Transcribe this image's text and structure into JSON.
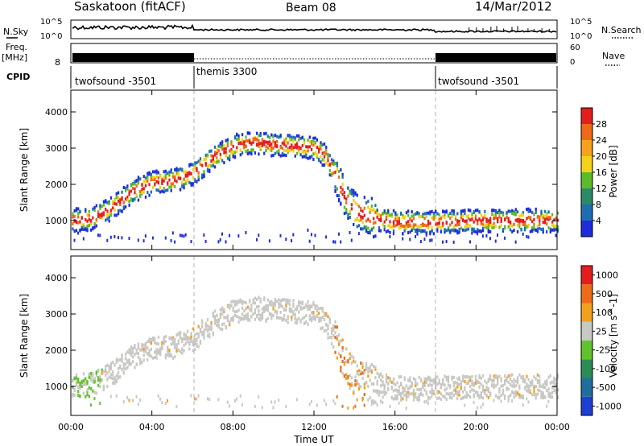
{
  "header": {
    "station": "Saskatoon (fitACF)",
    "beam": "Beam 08",
    "date": "14/Mar/2012"
  },
  "strip_labels": {
    "nsky": "N.Sky",
    "nsearch": "N.Search",
    "freq": "Freq.",
    "freq_unit": "[MHz]",
    "nave": "Nave",
    "cpid": "CPID",
    "nsky_top": "10^5",
    "nsky_bottom": "10^0",
    "nsearch_top": "10^5",
    "nsearch_bottom": "10^0",
    "freq_value": "8",
    "nave_top": "60",
    "nave_bottom": "0"
  },
  "cpid_segments": [
    {
      "label": "twofsound -3501",
      "start_hour": 0,
      "end_hour": 6
    },
    {
      "label": "themis 3300",
      "start_hour": 6,
      "end_hour": 18
    },
    {
      "label": "twofsound -3501",
      "start_hour": 18,
      "end_hour": 24
    }
  ],
  "colors": {
    "power_scale": [
      "#1f2ddb",
      "#1f6fb0",
      "#2e8a66",
      "#5dbb2a",
      "#f2d21a",
      "#f5a21c",
      "#ee6a1a",
      "#e21e1e"
    ],
    "velocity_scale": [
      "#1f3fd1",
      "#1f6f9e",
      "#2b8c55",
      "#62c22d",
      "#c8c8c4",
      "#f2a11e",
      "#ee6b1a",
      "#e21e1e"
    ],
    "boundary_line": "#b0b0b0"
  },
  "chart_data": [
    {
      "type": "heatmap",
      "ylabel": "Slant Range [km]",
      "xlabel": "Time UT",
      "x_ticks": [
        "00:00",
        "04:00",
        "08:00",
        "12:00",
        "16:00",
        "20:00",
        "00:00"
      ],
      "y_ticks": [
        "1000",
        "2000",
        "3000",
        "4000"
      ],
      "xlim_hours": [
        0,
        24
      ],
      "ylim_km": [
        200,
        4600
      ],
      "colorbar": {
        "label": "Power [dB]",
        "ticks": [
          "4",
          "8",
          "12",
          "16",
          "20",
          "24",
          "28"
        ]
      },
      "echo_band_centers": [
        {
          "hour": 0.0,
          "range_km": 1000
        },
        {
          "hour": 1.0,
          "range_km": 1050
        },
        {
          "hour": 2.0,
          "range_km": 1350
        },
        {
          "hour": 3.0,
          "range_km": 1800
        },
        {
          "hour": 4.0,
          "range_km": 2050
        },
        {
          "hour": 5.0,
          "range_km": 2100
        },
        {
          "hour": 6.0,
          "range_km": 2300
        },
        {
          "hour": 7.0,
          "range_km": 2750
        },
        {
          "hour": 8.0,
          "range_km": 3050
        },
        {
          "hour": 9.0,
          "range_km": 3150
        },
        {
          "hour": 10.0,
          "range_km": 3100
        },
        {
          "hour": 11.0,
          "range_km": 3050
        },
        {
          "hour": 12.0,
          "range_km": 3000
        },
        {
          "hour": 12.5,
          "range_km": 2800
        },
        {
          "hour": 13.0,
          "range_km": 2300
        },
        {
          "hour": 13.5,
          "range_km": 1650
        },
        {
          "hour": 14.0,
          "range_km": 1250
        },
        {
          "hour": 15.0,
          "range_km": 1050
        },
        {
          "hour": 16.0,
          "range_km": 950
        },
        {
          "hour": 18.0,
          "range_km": 950
        },
        {
          "hour": 20.0,
          "range_km": 1000
        },
        {
          "hour": 22.0,
          "range_km": 1000
        },
        {
          "hour": 24.0,
          "range_km": 1000
        }
      ]
    },
    {
      "type": "heatmap",
      "ylabel": "Slant Range [km]",
      "xlabel": "Time UT",
      "x_ticks": [
        "00:00",
        "04:00",
        "08:00",
        "12:00",
        "16:00",
        "20:00",
        "00:00"
      ],
      "y_ticks": [
        "1000",
        "2000",
        "3000",
        "4000"
      ],
      "xlim_hours": [
        0,
        24
      ],
      "ylim_km": [
        200,
        4600
      ],
      "colorbar": {
        "label": "Velocity [m s^-1]",
        "ticks": [
          "1000",
          "500",
          "100",
          "25",
          "-25",
          "-100",
          "-500",
          "-1000"
        ]
      }
    }
  ]
}
